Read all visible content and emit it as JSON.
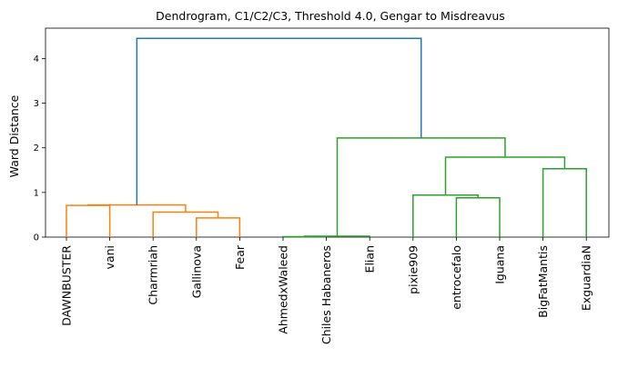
{
  "chart_data": {
    "type": "dendrogram",
    "title": "Dendrogram, C1/C2/C3, Threshold 4.0, Gengar to Misdreavus",
    "xlabel": "",
    "ylabel": "Ward Distance",
    "ylim": [
      0,
      4.68
    ],
    "yticks": [
      0,
      1,
      2,
      3,
      4
    ],
    "grid": false,
    "leaves": [
      "DAWNBUSTER",
      "vani",
      "Charmriah",
      "Gallinova",
      "Fear",
      "AhmedxWaleed",
      "Chiles Habaneros",
      "Elian",
      "pixie909",
      "entrocefalo",
      "Iguana",
      "BigFatMantis",
      "ExguardiaN"
    ],
    "colors": {
      "C1": "#ff7f0e",
      "C2": "#2ca02c",
      "above_threshold": "#1f77b4"
    },
    "links": [
      {
        "xl": 0,
        "hl": 0,
        "xr": 1,
        "hr": 0,
        "h": 0.71,
        "color": "#ff7f0e"
      },
      {
        "xl": 3,
        "hl": 0,
        "xr": 4,
        "hr": 0,
        "h": 0.43,
        "color": "#ff7f0e"
      },
      {
        "xl": 2,
        "hl": 0,
        "xr": 3.5,
        "hr": 0.43,
        "h": 0.56,
        "color": "#ff7f0e"
      },
      {
        "xl": 0.5,
        "hl": 0.71,
        "xr": 2.75,
        "hr": 0.56,
        "h": 0.72,
        "color": "#ff7f0e"
      },
      {
        "xl": 5,
        "hl": 0,
        "xr": 6,
        "hr": 0,
        "h": 0.01,
        "color": "#2ca02c"
      },
      {
        "xl": 5.5,
        "hl": 0.01,
        "xr": 7,
        "hr": 0,
        "h": 0.02,
        "color": "#2ca02c"
      },
      {
        "xl": 9,
        "hl": 0,
        "xr": 10,
        "hr": 0,
        "h": 0.88,
        "color": "#2ca02c"
      },
      {
        "xl": 8,
        "hl": 0,
        "xr": 9.5,
        "hr": 0.88,
        "h": 0.94,
        "color": "#2ca02c"
      },
      {
        "xl": 11,
        "hl": 0,
        "xr": 12,
        "hr": 0,
        "h": 1.53,
        "color": "#2ca02c"
      },
      {
        "xl": 8.75,
        "hl": 0.94,
        "xr": 11.5,
        "hr": 1.53,
        "h": 1.79,
        "color": "#2ca02c"
      },
      {
        "xl": 6.25,
        "hl": 0.02,
        "xr": 10.125,
        "hr": 1.79,
        "h": 2.22,
        "color": "#2ca02c"
      },
      {
        "xl": 1.625,
        "hl": 0.72,
        "xr": 8.1875,
        "hr": 2.22,
        "h": 4.45,
        "color": "#1f77b4"
      }
    ]
  }
}
